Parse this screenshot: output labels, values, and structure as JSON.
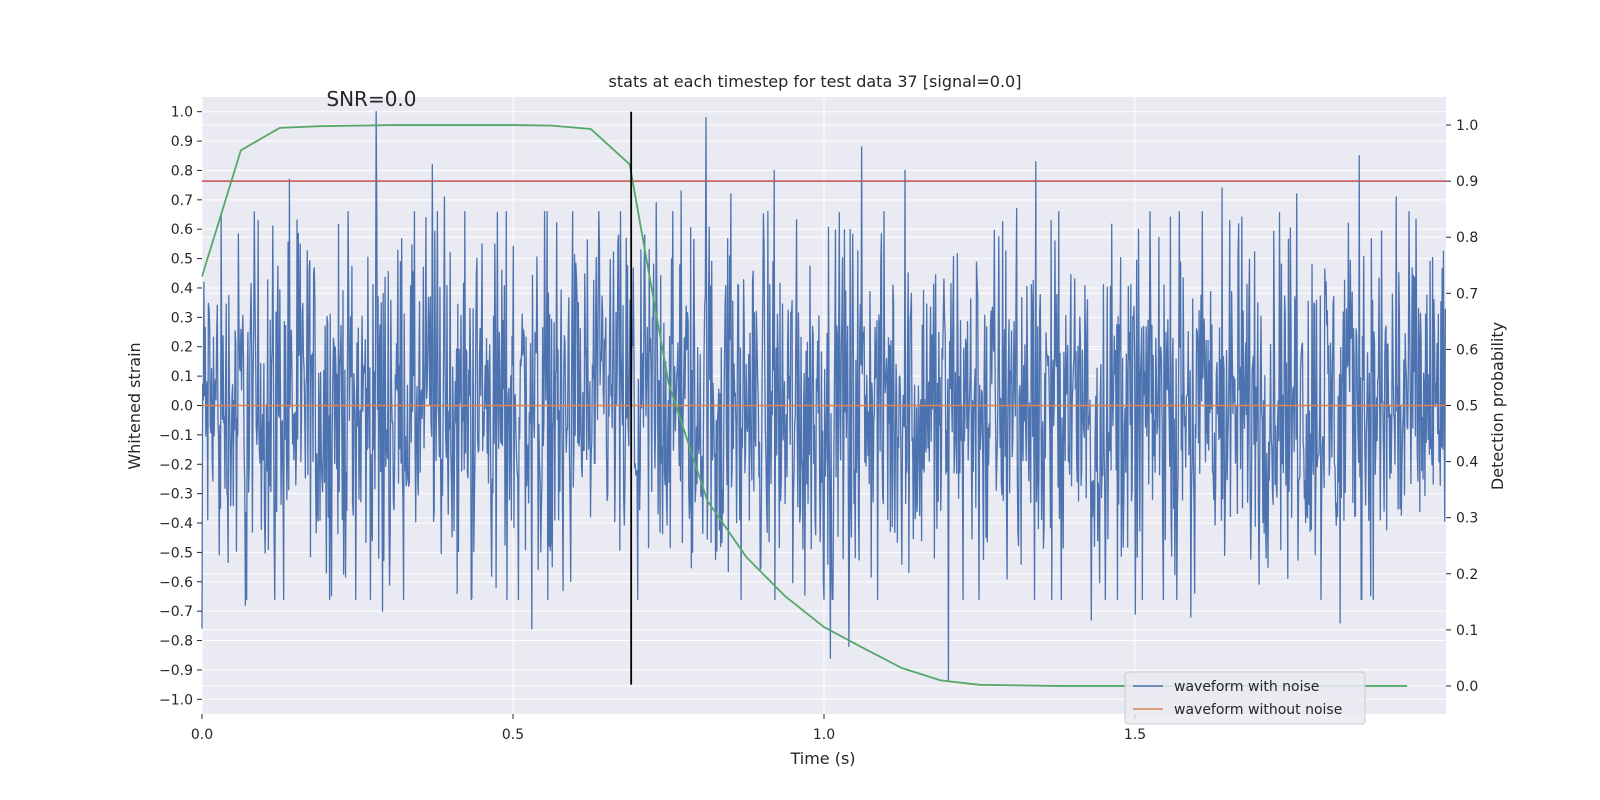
{
  "chart_data": {
    "type": "line",
    "title": "stats at each timestep for test data 37 [signal=0.0]",
    "xlabel": "Time (s)",
    "ylabel_left": "Whitened strain",
    "ylabel_right": "Detection probability",
    "xlim": [
      0.0,
      2.0
    ],
    "ylim_left": [
      -1.05,
      1.05
    ],
    "ylim_right": [
      -0.05,
      1.05
    ],
    "x_ticks": [
      0.0,
      0.5,
      1.0,
      1.5
    ],
    "x_tick_labels": [
      "0.0",
      "0.5",
      "1.0",
      "1.5"
    ],
    "y_left_ticks": [
      1.0,
      0.9,
      0.8,
      0.7,
      0.6,
      0.5,
      0.4,
      0.3,
      0.2,
      0.1,
      0.0,
      -0.1,
      -0.2,
      -0.3,
      -0.4,
      -0.5,
      -0.6,
      -0.7,
      -0.8,
      -0.9,
      -1.0
    ],
    "y_left_tick_labels": [
      "1.0",
      "0.9",
      "0.8",
      "0.7",
      "0.6",
      "0.5",
      "0.4",
      "0.3",
      "0.2",
      "0.1",
      "0.0",
      "−0.1",
      "−0.2",
      "−0.3",
      "−0.4",
      "−0.5",
      "−0.6",
      "−0.7",
      "−0.8",
      "−0.9",
      "−1.0"
    ],
    "y_right_ticks": [
      1.0,
      0.9,
      0.8,
      0.7,
      0.6,
      0.5,
      0.4,
      0.3,
      0.2,
      0.1,
      0.0
    ],
    "y_right_tick_labels": [
      "1.0",
      "0.9",
      "0.8",
      "0.7",
      "0.6",
      "0.5",
      "0.4",
      "0.3",
      "0.2",
      "0.1",
      "0.0"
    ],
    "annotation": "SNR=0.0",
    "annotation_pos": {
      "x": 0.2,
      "y": 1.02
    },
    "vertical_line_x": 0.69,
    "vertical_line_yrange": [
      -0.95,
      1.0
    ],
    "threshold_right": 0.9,
    "series": [
      {
        "name": "waveform with noise",
        "axis": "left",
        "color": "#4c72b0",
        "style": "noise",
        "amplitude_typical": 0.3,
        "peaks": [
          {
            "x": 0.0,
            "y": -0.76
          },
          {
            "x": 0.07,
            "y": -0.68
          },
          {
            "x": 0.14,
            "y": 0.77
          },
          {
            "x": 0.2,
            "y": -0.57
          },
          {
            "x": 0.28,
            "y": 1.0
          },
          {
            "x": 0.29,
            "y": -0.7
          },
          {
            "x": 0.37,
            "y": 0.82
          },
          {
            "x": 0.39,
            "y": 0.71
          },
          {
            "x": 0.41,
            "y": -0.64
          },
          {
            "x": 0.45,
            "y": 0.55
          },
          {
            "x": 0.53,
            "y": -0.76
          },
          {
            "x": 0.58,
            "y": -0.63
          },
          {
            "x": 0.67,
            "y": 0.58
          },
          {
            "x": 0.73,
            "y": 0.69
          },
          {
            "x": 0.77,
            "y": 0.73
          },
          {
            "x": 0.81,
            "y": 0.98
          },
          {
            "x": 0.85,
            "y": 0.72
          },
          {
            "x": 0.92,
            "y": 0.8
          },
          {
            "x": 1.01,
            "y": -0.86
          },
          {
            "x": 1.04,
            "y": -0.82
          },
          {
            "x": 1.06,
            "y": 0.88
          },
          {
            "x": 1.13,
            "y": 0.8
          },
          {
            "x": 1.2,
            "y": -0.94
          },
          {
            "x": 1.31,
            "y": 0.67
          },
          {
            "x": 1.34,
            "y": 0.83
          },
          {
            "x": 1.43,
            "y": -0.73
          },
          {
            "x": 1.5,
            "y": -0.71
          },
          {
            "x": 1.59,
            "y": -0.72
          },
          {
            "x": 1.64,
            "y": 0.74
          },
          {
            "x": 1.76,
            "y": 0.72
          },
          {
            "x": 1.83,
            "y": -0.74
          },
          {
            "x": 1.86,
            "y": 0.85
          },
          {
            "x": 1.92,
            "y": 0.71
          }
        ]
      },
      {
        "name": "waveform without noise",
        "axis": "left",
        "color": "#dd8452",
        "x": [
          0.0,
          2.0
        ],
        "y": [
          0.0,
          0.0
        ]
      },
      {
        "name": "Detection probability",
        "axis": "right",
        "color": "#55a868",
        "x": [
          0.0,
          0.0625,
          0.125,
          0.1875,
          0.25,
          0.3125,
          0.375,
          0.4375,
          0.5,
          0.5625,
          0.625,
          0.6875,
          0.75,
          0.8125,
          0.875,
          0.9375,
          1.0,
          1.0625,
          1.125,
          1.1875,
          1.25,
          1.3125,
          1.375,
          1.4375,
          1.5,
          1.5625,
          1.625,
          1.6875,
          1.75,
          1.8125,
          1.875,
          1.9375
        ],
        "y": [
          0.73,
          0.955,
          0.995,
          0.998,
          0.999,
          1.0,
          1.0,
          1.0,
          1.0,
          0.999,
          0.993,
          0.93,
          0.54,
          0.33,
          0.23,
          0.16,
          0.105,
          0.068,
          0.032,
          0.01,
          0.002,
          0.001,
          0.0,
          0.0,
          0.0,
          0.0,
          0.0,
          0.0,
          0.0,
          0.0,
          0.0,
          0.0
        ]
      },
      {
        "name": "threshold",
        "axis": "right",
        "color": "#c44e52",
        "x": [
          0.0,
          2.0
        ],
        "y": [
          0.9,
          0.9
        ]
      }
    ],
    "legend": [
      {
        "label": "waveform with noise",
        "color": "#4c72b0"
      },
      {
        "label": "waveform without noise",
        "color": "#dd8452"
      }
    ],
    "legend_loc": "lower right",
    "colors": {
      "background": "#eaeaf2",
      "grid": "#ffffff",
      "vline": "#000000"
    }
  }
}
